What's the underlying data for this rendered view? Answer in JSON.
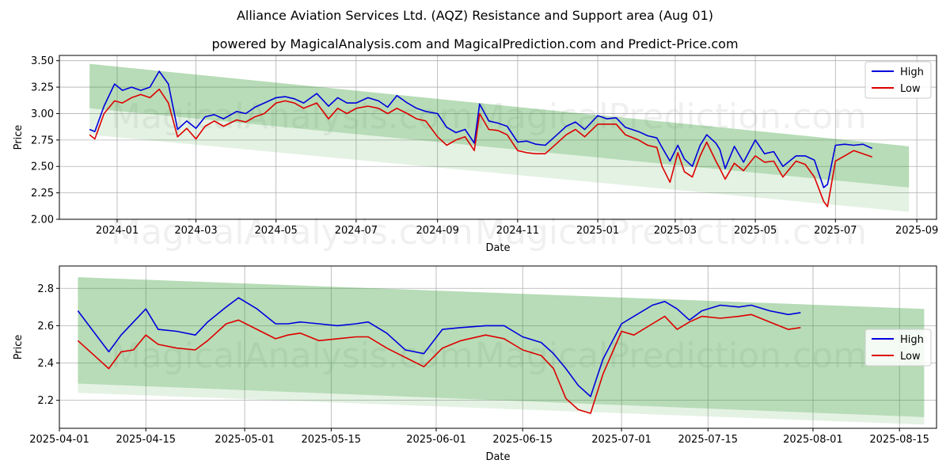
{
  "title": "Alliance Aviation Services Ltd. (AQZ) Resistance and Support area (Aug 01)",
  "subtitle": "powered by MagicalAnalysis.com and MagicalPrediction.com and Predict-Price.com",
  "watermarks": [
    "MagicalAnalysis.com",
    "MagicalPrediction.com"
  ],
  "colors": {
    "high": "#0000dd",
    "low": "#dd0000",
    "band": "#2e9a2e"
  },
  "chart_data": [
    {
      "type": "line",
      "xlabel": "Date",
      "ylabel": "Price",
      "ylim": [
        2.0,
        3.55
      ],
      "xlim": [
        "2023-11-18",
        "2025-09-16"
      ],
      "y_ticks": [
        "2.00",
        "2.25",
        "2.50",
        "2.75",
        "3.00",
        "3.25",
        "3.50"
      ],
      "x_ticks": [
        "2024-01",
        "2024-03",
        "2024-05",
        "2024-07",
        "2024-09",
        "2024-11",
        "2025-01",
        "2025-03",
        "2025-05",
        "2025-07",
        "2025-09"
      ],
      "x_tick_dates": [
        "2024-01-01",
        "2024-03-01",
        "2024-05-01",
        "2024-07-01",
        "2024-09-01",
        "2024-11-01",
        "2025-01-01",
        "2025-03-01",
        "2025-05-01",
        "2025-07-01",
        "2025-09-01"
      ],
      "legend": {
        "placement": "top-right",
        "entries": [
          "High",
          "Low"
        ]
      },
      "grid": true,
      "band": {
        "start_date": "2023-12-11",
        "end_date": "2025-08-26",
        "upper": [
          3.47,
          2.69
        ],
        "lower": [
          2.8,
          2.07
        ],
        "inner_upper": [
          3.05,
          2.3
        ]
      },
      "series": [
        {
          "name": "High",
          "x": [
            "2023-12-11",
            "2023-12-15",
            "2023-12-22",
            "2023-12-30",
            "2024-01-05",
            "2024-01-12",
            "2024-01-19",
            "2024-01-26",
            "2024-02-02",
            "2024-02-09",
            "2024-02-16",
            "2024-02-23",
            "2024-03-01",
            "2024-03-08",
            "2024-03-15",
            "2024-03-22",
            "2024-04-01",
            "2024-04-08",
            "2024-04-15",
            "2024-04-22",
            "2024-05-01",
            "2024-05-08",
            "2024-05-15",
            "2024-05-22",
            "2024-06-01",
            "2024-06-10",
            "2024-06-17",
            "2024-06-24",
            "2024-07-01",
            "2024-07-10",
            "2024-07-18",
            "2024-07-25",
            "2024-08-01",
            "2024-08-09",
            "2024-08-16",
            "2024-08-23",
            "2024-09-01",
            "2024-09-08",
            "2024-09-15",
            "2024-09-22",
            "2024-09-29",
            "2024-10-03",
            "2024-10-10",
            "2024-10-17",
            "2024-10-24",
            "2024-11-01",
            "2024-11-08",
            "2024-11-15",
            "2024-11-22",
            "2024-12-01",
            "2024-12-08",
            "2024-12-15",
            "2024-12-22",
            "2025-01-01",
            "2025-01-08",
            "2025-01-15",
            "2025-01-22",
            "2025-02-01",
            "2025-02-08",
            "2025-02-15",
            "2025-02-19",
            "2025-02-25",
            "2025-03-03",
            "2025-03-08",
            "2025-03-14",
            "2025-03-20",
            "2025-03-25",
            "2025-04-01",
            "2025-04-04",
            "2025-04-08",
            "2025-04-15",
            "2025-04-22",
            "2025-05-01",
            "2025-05-08",
            "2025-05-15",
            "2025-05-22",
            "2025-06-01",
            "2025-06-08",
            "2025-06-15",
            "2025-06-22",
            "2025-06-25",
            "2025-07-01",
            "2025-07-08",
            "2025-07-15",
            "2025-07-22",
            "2025-07-29"
          ],
          "y": [
            2.85,
            2.83,
            3.07,
            3.28,
            3.22,
            3.25,
            3.22,
            3.25,
            3.4,
            3.28,
            2.85,
            2.93,
            2.86,
            2.97,
            2.99,
            2.95,
            3.02,
            3.0,
            3.06,
            3.1,
            3.15,
            3.16,
            3.14,
            3.1,
            3.19,
            3.07,
            3.15,
            3.1,
            3.1,
            3.15,
            3.12,
            3.06,
            3.17,
            3.1,
            3.05,
            3.02,
            3.0,
            2.87,
            2.82,
            2.85,
            2.72,
            3.09,
            2.93,
            2.91,
            2.88,
            2.73,
            2.74,
            2.71,
            2.7,
            2.8,
            2.88,
            2.92,
            2.85,
            2.98,
            2.95,
            2.96,
            2.87,
            2.83,
            2.79,
            2.77,
            2.68,
            2.55,
            2.7,
            2.57,
            2.5,
            2.7,
            2.8,
            2.72,
            2.66,
            2.48,
            2.69,
            2.54,
            2.75,
            2.62,
            2.64,
            2.5,
            2.6,
            2.6,
            2.56,
            2.3,
            2.33,
            2.7,
            2.71,
            2.7,
            2.71,
            2.67
          ]
        },
        {
          "name": "Low",
          "x": [
            "2023-12-11",
            "2023-12-15",
            "2023-12-22",
            "2023-12-30",
            "2024-01-05",
            "2024-01-12",
            "2024-01-19",
            "2024-01-26",
            "2024-02-02",
            "2024-02-09",
            "2024-02-16",
            "2024-02-23",
            "2024-03-01",
            "2024-03-08",
            "2024-03-15",
            "2024-03-22",
            "2024-04-01",
            "2024-04-08",
            "2024-04-15",
            "2024-04-22",
            "2024-05-01",
            "2024-05-08",
            "2024-05-15",
            "2024-05-22",
            "2024-06-01",
            "2024-06-10",
            "2024-06-17",
            "2024-06-24",
            "2024-07-01",
            "2024-07-10",
            "2024-07-18",
            "2024-07-25",
            "2024-08-01",
            "2024-08-09",
            "2024-08-16",
            "2024-08-23",
            "2024-09-01",
            "2024-09-08",
            "2024-09-15",
            "2024-09-22",
            "2024-09-29",
            "2024-10-03",
            "2024-10-10",
            "2024-10-17",
            "2024-10-24",
            "2024-11-01",
            "2024-11-08",
            "2024-11-15",
            "2024-11-22",
            "2024-12-01",
            "2024-12-08",
            "2024-12-15",
            "2024-12-22",
            "2025-01-01",
            "2025-01-08",
            "2025-01-15",
            "2025-01-22",
            "2025-02-01",
            "2025-02-08",
            "2025-02-15",
            "2025-02-19",
            "2025-02-25",
            "2025-03-03",
            "2025-03-08",
            "2025-03-14",
            "2025-03-20",
            "2025-03-25",
            "2025-04-01",
            "2025-04-04",
            "2025-04-08",
            "2025-04-15",
            "2025-04-22",
            "2025-05-01",
            "2025-05-08",
            "2025-05-15",
            "2025-05-22",
            "2025-06-01",
            "2025-06-08",
            "2025-06-15",
            "2025-06-22",
            "2025-06-25",
            "2025-07-01",
            "2025-07-08",
            "2025-07-15",
            "2025-07-22",
            "2025-07-29"
          ],
          "y": [
            2.8,
            2.76,
            3.0,
            3.12,
            3.1,
            3.15,
            3.18,
            3.15,
            3.23,
            3.1,
            2.78,
            2.86,
            2.76,
            2.88,
            2.93,
            2.88,
            2.94,
            2.92,
            2.97,
            3.0,
            3.1,
            3.12,
            3.1,
            3.05,
            3.1,
            2.95,
            3.05,
            3.0,
            3.05,
            3.07,
            3.05,
            3.0,
            3.05,
            3.0,
            2.95,
            2.93,
            2.78,
            2.7,
            2.75,
            2.78,
            2.65,
            3.0,
            2.85,
            2.84,
            2.8,
            2.65,
            2.63,
            2.62,
            2.62,
            2.72,
            2.8,
            2.85,
            2.78,
            2.9,
            2.9,
            2.9,
            2.8,
            2.75,
            2.7,
            2.68,
            2.5,
            2.35,
            2.63,
            2.45,
            2.4,
            2.6,
            2.73,
            2.55,
            2.48,
            2.38,
            2.53,
            2.46,
            2.6,
            2.54,
            2.55,
            2.4,
            2.55,
            2.52,
            2.4,
            2.17,
            2.12,
            2.55,
            2.6,
            2.65,
            2.62,
            2.59
          ]
        }
      ]
    },
    {
      "type": "line",
      "xlabel": "Date",
      "ylabel": "Price",
      "ylim": [
        2.05,
        2.92
      ],
      "xlim": [
        "2025-04-01",
        "2025-08-21"
      ],
      "y_ticks": [
        "2.2",
        "2.4",
        "2.6",
        "2.8"
      ],
      "x_ticks": [
        "2025-04-01",
        "2025-04-15",
        "2025-05-01",
        "2025-05-15",
        "2025-06-01",
        "2025-06-15",
        "2025-07-01",
        "2025-07-15",
        "2025-08-01",
        "2025-08-15"
      ],
      "x_tick_dates": [
        "2025-04-01",
        "2025-04-15",
        "2025-05-01",
        "2025-05-15",
        "2025-06-01",
        "2025-06-15",
        "2025-07-01",
        "2025-07-15",
        "2025-08-01",
        "2025-08-15"
      ],
      "legend": {
        "placement": "center-right",
        "entries": [
          "High",
          "Low"
        ]
      },
      "grid": true,
      "band": {
        "start_date": "2025-04-04",
        "end_date": "2025-08-19",
        "upper": [
          2.86,
          2.69
        ],
        "lower": [
          2.24,
          2.07
        ],
        "inner_upper": [
          2.29,
          2.11
        ]
      },
      "series": [
        {
          "name": "High",
          "x": [
            "2025-04-04",
            "2025-04-09",
            "2025-04-11",
            "2025-04-13",
            "2025-04-15",
            "2025-04-17",
            "2025-04-20",
            "2025-04-23",
            "2025-04-25",
            "2025-04-28",
            "2025-04-30",
            "2025-05-03",
            "2025-05-06",
            "2025-05-08",
            "2025-05-10",
            "2025-05-13",
            "2025-05-16",
            "2025-05-19",
            "2025-05-21",
            "2025-05-24",
            "2025-05-27",
            "2025-05-30",
            "2025-06-02",
            "2025-06-05",
            "2025-06-09",
            "2025-06-12",
            "2025-06-15",
            "2025-06-18",
            "2025-06-20",
            "2025-06-22",
            "2025-06-24",
            "2025-06-26",
            "2025-06-28",
            "2025-07-01",
            "2025-07-03",
            "2025-07-06",
            "2025-07-08",
            "2025-07-10",
            "2025-07-12",
            "2025-07-14",
            "2025-07-17",
            "2025-07-20",
            "2025-07-22",
            "2025-07-25",
            "2025-07-28",
            "2025-07-30"
          ],
          "y": [
            2.68,
            2.46,
            2.55,
            2.62,
            2.69,
            2.58,
            2.57,
            2.55,
            2.62,
            2.7,
            2.75,
            2.69,
            2.61,
            2.61,
            2.62,
            2.61,
            2.6,
            2.61,
            2.62,
            2.56,
            2.47,
            2.45,
            2.58,
            2.59,
            2.6,
            2.6,
            2.54,
            2.51,
            2.45,
            2.37,
            2.28,
            2.22,
            2.42,
            2.61,
            2.65,
            2.71,
            2.73,
            2.69,
            2.63,
            2.68,
            2.71,
            2.7,
            2.71,
            2.68,
            2.66,
            2.67
          ]
        },
        {
          "name": "Low",
          "x": [
            "2025-04-04",
            "2025-04-09",
            "2025-04-11",
            "2025-04-13",
            "2025-04-15",
            "2025-04-17",
            "2025-04-20",
            "2025-04-23",
            "2025-04-25",
            "2025-04-28",
            "2025-04-30",
            "2025-05-03",
            "2025-05-06",
            "2025-05-08",
            "2025-05-10",
            "2025-05-13",
            "2025-05-16",
            "2025-05-19",
            "2025-05-21",
            "2025-05-24",
            "2025-05-27",
            "2025-05-30",
            "2025-06-02",
            "2025-06-05",
            "2025-06-09",
            "2025-06-12",
            "2025-06-15",
            "2025-06-18",
            "2025-06-20",
            "2025-06-22",
            "2025-06-24",
            "2025-06-26",
            "2025-06-28",
            "2025-07-01",
            "2025-07-03",
            "2025-07-06",
            "2025-07-08",
            "2025-07-10",
            "2025-07-12",
            "2025-07-14",
            "2025-07-17",
            "2025-07-20",
            "2025-07-22",
            "2025-07-25",
            "2025-07-28",
            "2025-07-30"
          ],
          "y": [
            2.52,
            2.37,
            2.46,
            2.47,
            2.55,
            2.5,
            2.48,
            2.47,
            2.52,
            2.61,
            2.63,
            2.58,
            2.53,
            2.55,
            2.56,
            2.52,
            2.53,
            2.54,
            2.54,
            2.48,
            2.43,
            2.38,
            2.48,
            2.52,
            2.55,
            2.53,
            2.47,
            2.44,
            2.37,
            2.21,
            2.15,
            2.13,
            2.34,
            2.57,
            2.55,
            2.61,
            2.65,
            2.58,
            2.62,
            2.65,
            2.64,
            2.65,
            2.66,
            2.62,
            2.58,
            2.59
          ]
        }
      ]
    }
  ]
}
